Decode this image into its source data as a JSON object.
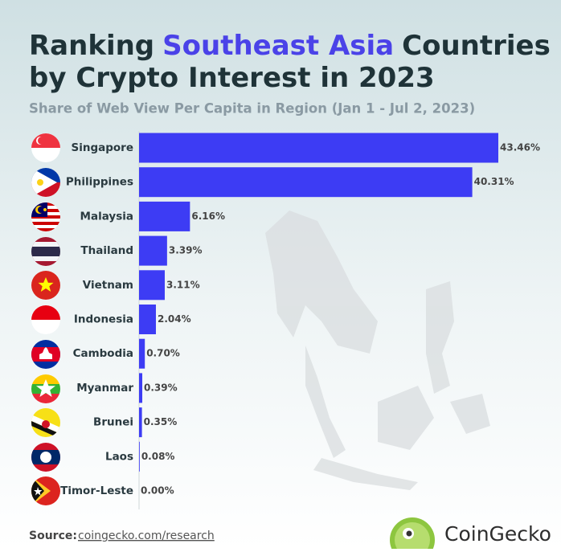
{
  "chart_data": {
    "type": "bar",
    "orientation": "horizontal",
    "title": [
      "Ranking",
      "Southeast Asia",
      "Countries",
      "by Crypto Interest in 2023"
    ],
    "title_highlight": 1,
    "title_color": "#1f3338",
    "highlight_color": "#4a42e8",
    "subtitle": "Share of Web View Per Capita in Region (Jan 1 - Jul 2, 2023)",
    "categories": [
      "Singapore",
      "Philippines",
      "Malaysia",
      "Thailand",
      "Vietnam",
      "Indonesia",
      "Cambodia",
      "Myanmar",
      "Brunei",
      "Laos",
      "Timor-Leste"
    ],
    "values": [
      43.46,
      40.31,
      6.16,
      3.39,
      3.11,
      2.04,
      0.7,
      0.39,
      0.35,
      0.08,
      0.0
    ],
    "value_labels": [
      "43.46%",
      "40.31%",
      "6.16%",
      "3.39%",
      "3.11%",
      "2.04%",
      "0.70%",
      "0.39%",
      "0.35%",
      "0.08%",
      "0.00%"
    ],
    "color": "#3d3cf4"
  },
  "footer": {
    "source_label": "Source:",
    "source_link": "coingecko.com/research",
    "brand": "CoinGecko"
  }
}
